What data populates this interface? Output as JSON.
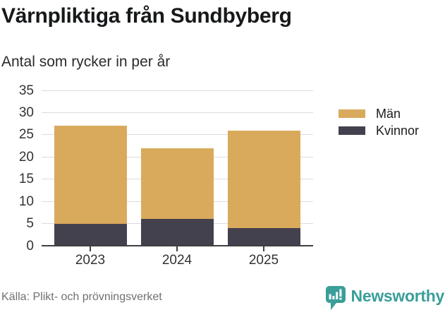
{
  "title": "Värnpliktiga från Sundbyberg",
  "subtitle": "Antal som rycker in per år",
  "source": "Källa: Plikt- och prövningsverket",
  "brand": {
    "name": "Newsworthy",
    "color": "#3a9e99"
  },
  "colors": {
    "man": "#d9aa5c",
    "kvinnor": "#44414e",
    "grid": "#dcdcdc",
    "axis": "#3f3f3f",
    "tick_text": "#333333",
    "title_text": "#16181a",
    "muted_text": "#707070"
  },
  "chart_data": {
    "type": "bar",
    "stacked": true,
    "title": "Värnpliktiga från Sundbyberg",
    "subtitle": "Antal som rycker in per år",
    "categories": [
      "2023",
      "2024",
      "2025"
    ],
    "series": [
      {
        "name": "Män",
        "color": "#d9aa5c",
        "values": [
          22,
          16,
          22
        ]
      },
      {
        "name": "Kvinnor",
        "color": "#44414e",
        "values": [
          5,
          6,
          4
        ]
      }
    ],
    "stack_order_bottom_to_top": [
      "Kvinnor",
      "Män"
    ],
    "totals": [
      27,
      22,
      26
    ],
    "xlabel": "",
    "ylabel": "",
    "ylim": [
      0,
      35
    ],
    "yticks": [
      0,
      5,
      10,
      15,
      20,
      25,
      30,
      35
    ],
    "grid": true,
    "legend_position": "right"
  }
}
